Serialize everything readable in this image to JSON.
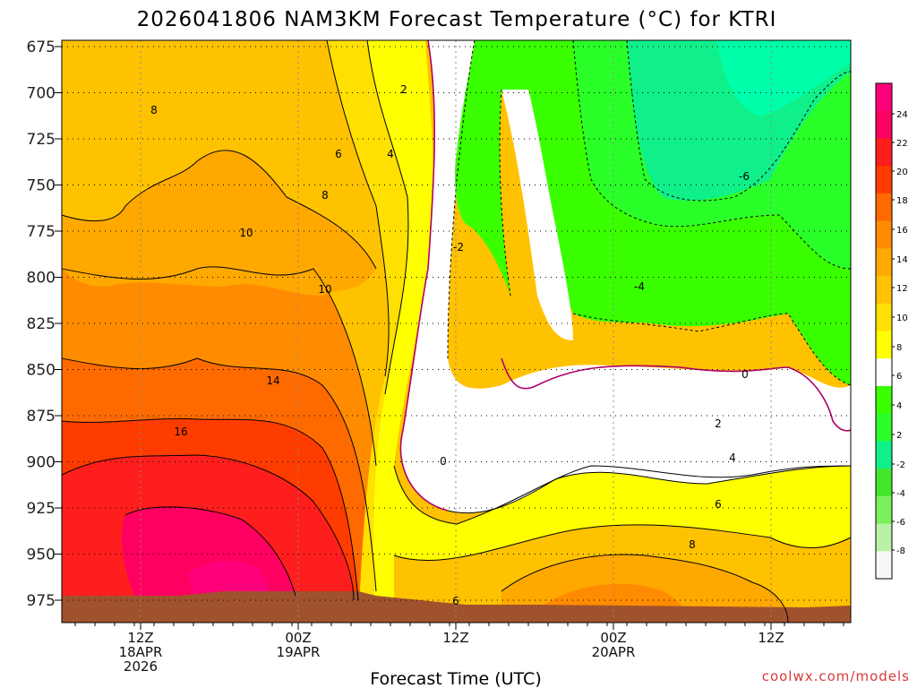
{
  "chart_data": {
    "type": "heatmap",
    "title": "2026041806 NAM3KM Forecast Temperature (°C) for KTRI",
    "xlabel": "Forecast Time (UTC)",
    "ylabel": "",
    "y_axis": {
      "ticks": [
        "675",
        "700",
        "725",
        "750",
        "775",
        "800",
        "825",
        "850",
        "875",
        "900",
        "925",
        "950",
        "975"
      ],
      "reversed": true
    },
    "x_axis": {
      "ticks": [
        {
          "line1": "12Z",
          "line2": "18APR",
          "line3": "2026"
        },
        {
          "line1": "00Z",
          "line2": "19APR",
          "line3": ""
        },
        {
          "line1": "12Z",
          "line2": "",
          "line3": ""
        },
        {
          "line1": "00Z",
          "line2": "20APR",
          "line3": ""
        },
        {
          "line1": "12Z",
          "line2": "",
          "line3": ""
        }
      ]
    },
    "colorbar": {
      "ticks": [
        "24",
        "22",
        "20",
        "18",
        "16",
        "14",
        "12",
        "10",
        "8",
        "6",
        "4",
        "2",
        "-2",
        "-4",
        "-6",
        "-8"
      ],
      "colors": [
        "#f7f7f7",
        "#b9f2a6",
        "#7cf05c",
        "#44e62c",
        "#10f08a",
        "#2aff2a",
        "#39ff00",
        "#ffffff",
        "#ffff00",
        "#ffe000",
        "#ffc200",
        "#ffa800",
        "#ff8c00",
        "#ff6a00",
        "#ff3c00",
        "#ff1e1e",
        "#ff0060",
        "#ff007a"
      ]
    },
    "contour_labels": [
      "8",
      "6",
      "2",
      "4",
      "8",
      "10",
      "10",
      "14",
      "16",
      "-2",
      "-4",
      "-6",
      "0",
      "0",
      "2",
      "4",
      "6",
      "8",
      "6"
    ],
    "grid": true
  },
  "credit": "coolwx.com/models"
}
